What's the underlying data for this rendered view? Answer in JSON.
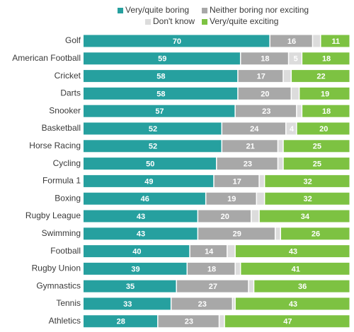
{
  "chart_data": {
    "type": "stacked-bar-horizontal",
    "categories": [
      "Golf",
      "American Football",
      "Cricket",
      "Darts",
      "Snooker",
      "Basketball",
      "Horse Racing",
      "Cycling",
      "Formula 1",
      "Boxing",
      "Rugby League",
      "Swimming",
      "Football",
      "Rugby Union",
      "Gymnastics",
      "Tennis",
      "Athletics"
    ],
    "series": [
      {
        "name": "Very/quite boring",
        "color": "#26a09f",
        "values": [
          70,
          59,
          58,
          58,
          57,
          52,
          52,
          50,
          49,
          46,
          43,
          43,
          40,
          39,
          35,
          33,
          28
        ]
      },
      {
        "name": "Neither boring nor exciting",
        "color": "#a8a8a8",
        "values": [
          16,
          18,
          17,
          20,
          23,
          24,
          21,
          23,
          17,
          19,
          20,
          29,
          14,
          18,
          27,
          23,
          23
        ]
      },
      {
        "name": "Don't know",
        "color": "#dcdcdc",
        "values": [
          3,
          5,
          3,
          3,
          2,
          4,
          2,
          2,
          2,
          3,
          3,
          2,
          3,
          2,
          2,
          1,
          2
        ]
      },
      {
        "name": "Very/quite exciting",
        "color": "#7dc242",
        "values": [
          11,
          18,
          22,
          19,
          18,
          20,
          25,
          25,
          32,
          32,
          34,
          26,
          43,
          41,
          36,
          43,
          47
        ]
      }
    ],
    "xlim": [
      0,
      100
    ]
  }
}
